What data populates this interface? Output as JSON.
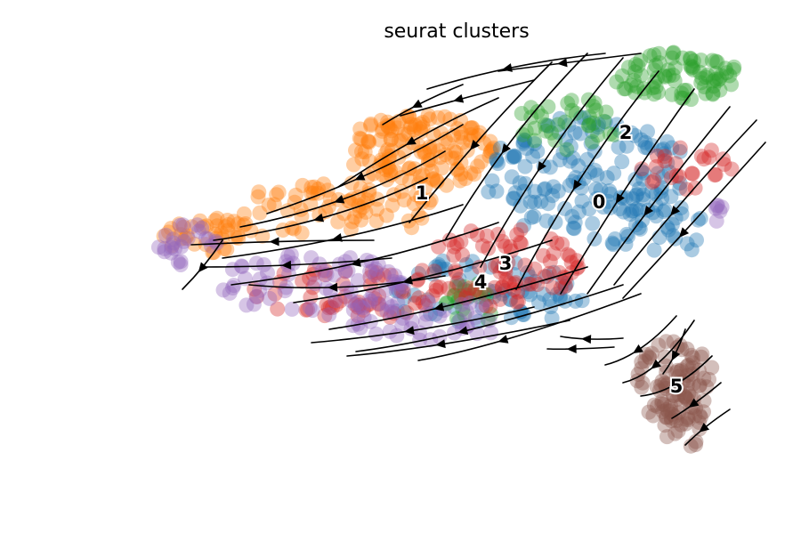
{
  "chart_data": {
    "type": "scatter",
    "title": "seurat clusters",
    "xlabel": "",
    "ylabel": "",
    "axes_visible": false,
    "grid": false,
    "legend": "on-data",
    "overlay": "velocity-streamlines",
    "streamline_color": "#000000",
    "clusters": [
      {
        "label": "0",
        "color": "#1f77b4"
      },
      {
        "label": "1",
        "color": "#ff7f0e"
      },
      {
        "label": "2",
        "color": "#2ca02c"
      },
      {
        "label": "3",
        "color": "#d62728"
      },
      {
        "label": "4",
        "color": "#9467bd"
      },
      {
        "label": "5",
        "color": "#8c564b"
      }
    ]
  }
}
